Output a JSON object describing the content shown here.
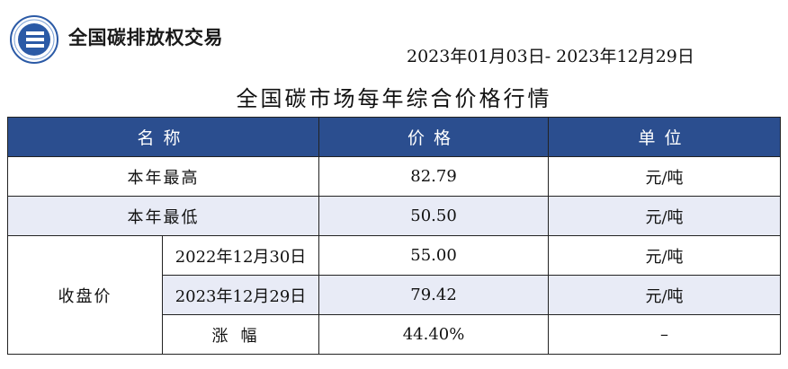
{
  "header": {
    "brand": "全国碳排放权交易",
    "logo_icon": "carbon-exchange-logo",
    "date_range": "2023年01月03日- 2023年12月29日",
    "title": "全国碳市场每年综合价格行情"
  },
  "table": {
    "columns": [
      "名称",
      "价格",
      "单位"
    ],
    "rows": {
      "high": {
        "label": "本年最高",
        "price": "82.79",
        "unit": "元/吨"
      },
      "low": {
        "label": "本年最低",
        "price": "50.50",
        "unit": "元/吨"
      },
      "close_group_label": "收盘价",
      "close_prev": {
        "date": "2022年12月30日",
        "price": "55.00",
        "unit": "元/吨"
      },
      "close_curr": {
        "date": "2023年12月29日",
        "price": "79.42",
        "unit": "元/吨"
      },
      "change": {
        "label": "涨幅",
        "price": "44.40%",
        "unit": "–"
      }
    }
  },
  "colors": {
    "header_bg": "#2b4e8f",
    "row_shade": "#e8ebf6"
  }
}
